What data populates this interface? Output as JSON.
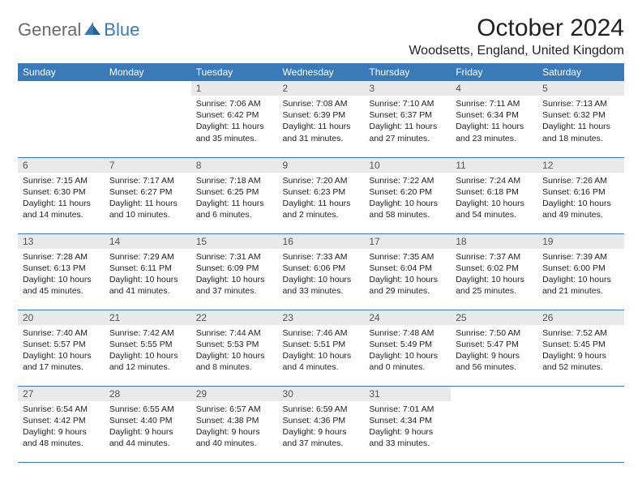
{
  "brand": {
    "general": "General",
    "blue": "Blue"
  },
  "title": "October 2024",
  "location": "Woodsetts, England, United Kingdom",
  "colors": {
    "header_bg": "#3a7ab8",
    "daynum_bg": "#e9e9e9"
  },
  "weekdays": [
    "Sunday",
    "Monday",
    "Tuesday",
    "Wednesday",
    "Thursday",
    "Friday",
    "Saturday"
  ],
  "weeks": [
    [
      null,
      null,
      {
        "n": "1",
        "sunrise": "7:06 AM",
        "sunset": "6:42 PM",
        "daylight": "11 hours and 35 minutes."
      },
      {
        "n": "2",
        "sunrise": "7:08 AM",
        "sunset": "6:39 PM",
        "daylight": "11 hours and 31 minutes."
      },
      {
        "n": "3",
        "sunrise": "7:10 AM",
        "sunset": "6:37 PM",
        "daylight": "11 hours and 27 minutes."
      },
      {
        "n": "4",
        "sunrise": "7:11 AM",
        "sunset": "6:34 PM",
        "daylight": "11 hours and 23 minutes."
      },
      {
        "n": "5",
        "sunrise": "7:13 AM",
        "sunset": "6:32 PM",
        "daylight": "11 hours and 18 minutes."
      }
    ],
    [
      {
        "n": "6",
        "sunrise": "7:15 AM",
        "sunset": "6:30 PM",
        "daylight": "11 hours and 14 minutes."
      },
      {
        "n": "7",
        "sunrise": "7:17 AM",
        "sunset": "6:27 PM",
        "daylight": "11 hours and 10 minutes."
      },
      {
        "n": "8",
        "sunrise": "7:18 AM",
        "sunset": "6:25 PM",
        "daylight": "11 hours and 6 minutes."
      },
      {
        "n": "9",
        "sunrise": "7:20 AM",
        "sunset": "6:23 PM",
        "daylight": "11 hours and 2 minutes."
      },
      {
        "n": "10",
        "sunrise": "7:22 AM",
        "sunset": "6:20 PM",
        "daylight": "10 hours and 58 minutes."
      },
      {
        "n": "11",
        "sunrise": "7:24 AM",
        "sunset": "6:18 PM",
        "daylight": "10 hours and 54 minutes."
      },
      {
        "n": "12",
        "sunrise": "7:26 AM",
        "sunset": "6:16 PM",
        "daylight": "10 hours and 49 minutes."
      }
    ],
    [
      {
        "n": "13",
        "sunrise": "7:28 AM",
        "sunset": "6:13 PM",
        "daylight": "10 hours and 45 minutes."
      },
      {
        "n": "14",
        "sunrise": "7:29 AM",
        "sunset": "6:11 PM",
        "daylight": "10 hours and 41 minutes."
      },
      {
        "n": "15",
        "sunrise": "7:31 AM",
        "sunset": "6:09 PM",
        "daylight": "10 hours and 37 minutes."
      },
      {
        "n": "16",
        "sunrise": "7:33 AM",
        "sunset": "6:06 PM",
        "daylight": "10 hours and 33 minutes."
      },
      {
        "n": "17",
        "sunrise": "7:35 AM",
        "sunset": "6:04 PM",
        "daylight": "10 hours and 29 minutes."
      },
      {
        "n": "18",
        "sunrise": "7:37 AM",
        "sunset": "6:02 PM",
        "daylight": "10 hours and 25 minutes."
      },
      {
        "n": "19",
        "sunrise": "7:39 AM",
        "sunset": "6:00 PM",
        "daylight": "10 hours and 21 minutes."
      }
    ],
    [
      {
        "n": "20",
        "sunrise": "7:40 AM",
        "sunset": "5:57 PM",
        "daylight": "10 hours and 17 minutes."
      },
      {
        "n": "21",
        "sunrise": "7:42 AM",
        "sunset": "5:55 PM",
        "daylight": "10 hours and 12 minutes."
      },
      {
        "n": "22",
        "sunrise": "7:44 AM",
        "sunset": "5:53 PM",
        "daylight": "10 hours and 8 minutes."
      },
      {
        "n": "23",
        "sunrise": "7:46 AM",
        "sunset": "5:51 PM",
        "daylight": "10 hours and 4 minutes."
      },
      {
        "n": "24",
        "sunrise": "7:48 AM",
        "sunset": "5:49 PM",
        "daylight": "10 hours and 0 minutes."
      },
      {
        "n": "25",
        "sunrise": "7:50 AM",
        "sunset": "5:47 PM",
        "daylight": "9 hours and 56 minutes."
      },
      {
        "n": "26",
        "sunrise": "7:52 AM",
        "sunset": "5:45 PM",
        "daylight": "9 hours and 52 minutes."
      }
    ],
    [
      {
        "n": "27",
        "sunrise": "6:54 AM",
        "sunset": "4:42 PM",
        "daylight": "9 hours and 48 minutes."
      },
      {
        "n": "28",
        "sunrise": "6:55 AM",
        "sunset": "4:40 PM",
        "daylight": "9 hours and 44 minutes."
      },
      {
        "n": "29",
        "sunrise": "6:57 AM",
        "sunset": "4:38 PM",
        "daylight": "9 hours and 40 minutes."
      },
      {
        "n": "30",
        "sunrise": "6:59 AM",
        "sunset": "4:36 PM",
        "daylight": "9 hours and 37 minutes."
      },
      {
        "n": "31",
        "sunrise": "7:01 AM",
        "sunset": "4:34 PM",
        "daylight": "9 hours and 33 minutes."
      },
      null,
      null
    ]
  ],
  "labels": {
    "sunrise": "Sunrise:",
    "sunset": "Sunset:",
    "daylight": "Daylight:"
  }
}
